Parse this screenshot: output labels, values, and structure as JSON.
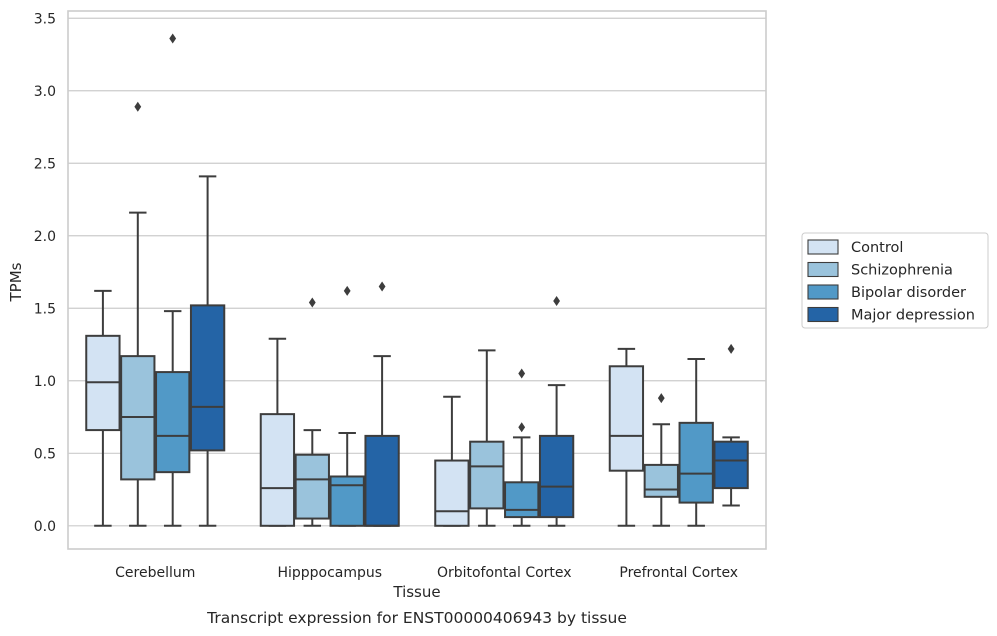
{
  "chart_data": {
    "type": "box",
    "caption": "Transcript expression for ENST00000406943 by tissue",
    "xlabel": "Tissue",
    "ylabel": "TPMs",
    "ylim": [
      -0.16,
      3.55
    ],
    "yticks": [
      "0.0",
      "0.5",
      "1.0",
      "1.5",
      "2.0",
      "2.5",
      "3.0",
      "3.5"
    ],
    "grid": "horizontal",
    "legend_position": "right",
    "categories": [
      "Cerebellum",
      "Hipppocampus",
      "Orbitofontal Cortex",
      "Prefrontal Cortex"
    ],
    "series": [
      {
        "name": "Control",
        "color": "#d3e3f3",
        "boxes": [
          {
            "whislo": 0.0,
            "q1": 0.66,
            "med": 0.99,
            "q3": 1.31,
            "whishi": 1.62,
            "fliers": []
          },
          {
            "whislo": 0.0,
            "q1": 0.0,
            "med": 0.26,
            "q3": 0.77,
            "whishi": 1.29,
            "fliers": []
          },
          {
            "whislo": 0.0,
            "q1": 0.0,
            "med": 0.1,
            "q3": 0.45,
            "whishi": 0.89,
            "fliers": []
          },
          {
            "whislo": 0.0,
            "q1": 0.38,
            "med": 0.62,
            "q3": 1.1,
            "whishi": 1.22,
            "fliers": []
          }
        ]
      },
      {
        "name": "Schizophrenia",
        "color": "#9ac3dc",
        "boxes": [
          {
            "whislo": 0.0,
            "q1": 0.32,
            "med": 0.75,
            "q3": 1.17,
            "whishi": 2.16,
            "fliers": [
              2.89
            ]
          },
          {
            "whislo": 0.0,
            "q1": 0.05,
            "med": 0.32,
            "q3": 0.49,
            "whishi": 0.66,
            "fliers": [
              1.54
            ]
          },
          {
            "whislo": 0.0,
            "q1": 0.12,
            "med": 0.41,
            "q3": 0.58,
            "whishi": 1.21,
            "fliers": []
          },
          {
            "whislo": 0.0,
            "q1": 0.2,
            "med": 0.25,
            "q3": 0.42,
            "whishi": 0.7,
            "fliers": [
              0.88
            ]
          }
        ]
      },
      {
        "name": "Bipolar disorder",
        "color": "#5199c7",
        "boxes": [
          {
            "whislo": 0.0,
            "q1": 0.37,
            "med": 0.62,
            "q3": 1.06,
            "whishi": 1.48,
            "fliers": [
              3.36
            ]
          },
          {
            "whislo": 0.0,
            "q1": 0.0,
            "med": 0.28,
            "q3": 0.34,
            "whishi": 0.64,
            "fliers": [
              1.62
            ]
          },
          {
            "whislo": 0.0,
            "q1": 0.06,
            "med": 0.11,
            "q3": 0.3,
            "whishi": 0.61,
            "fliers": [
              0.68,
              1.05
            ]
          },
          {
            "whislo": 0.0,
            "q1": 0.16,
            "med": 0.36,
            "q3": 0.71,
            "whishi": 1.15,
            "fliers": []
          }
        ]
      },
      {
        "name": "Major depression",
        "color": "#2464a6",
        "boxes": [
          {
            "whislo": 0.0,
            "q1": 0.52,
            "med": 0.82,
            "q3": 1.52,
            "whishi": 2.41,
            "fliers": []
          },
          {
            "whislo": 0.0,
            "q1": 0.0,
            "med": 0.0,
            "q3": 0.62,
            "whishi": 1.17,
            "fliers": [
              1.65
            ]
          },
          {
            "whislo": 0.0,
            "q1": 0.06,
            "med": 0.27,
            "q3": 0.62,
            "whishi": 0.97,
            "fliers": [
              1.55
            ]
          },
          {
            "whislo": 0.14,
            "q1": 0.26,
            "med": 0.45,
            "q3": 0.58,
            "whishi": 0.61,
            "fliers": [
              1.22
            ]
          }
        ]
      }
    ]
  }
}
